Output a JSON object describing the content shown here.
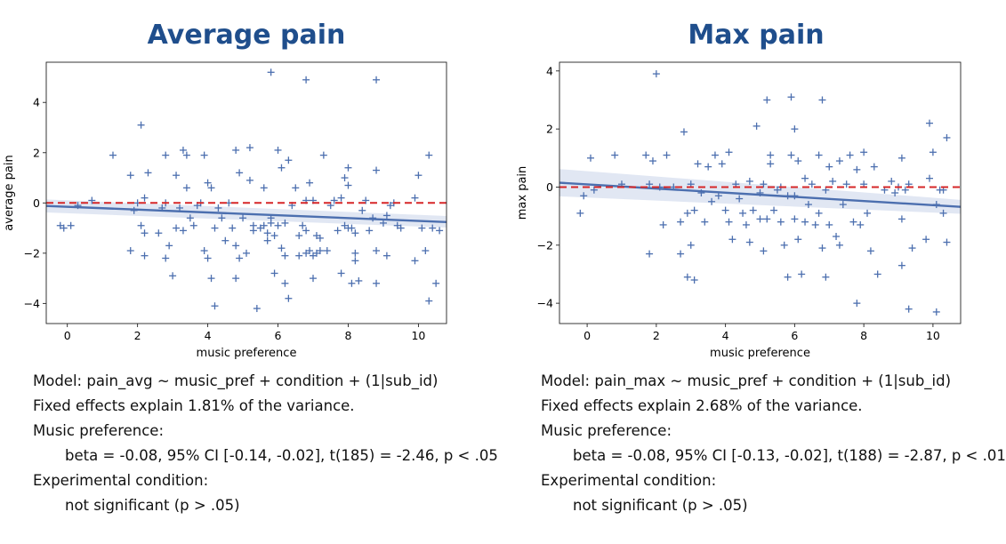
{
  "chart_data": [
    {
      "type": "scatter",
      "title": "Average pain",
      "xlabel": "music preference",
      "ylabel": "average pain",
      "xlim": [
        -0.6,
        10.8
      ],
      "ylim": [
        -4.8,
        5.6
      ],
      "xticks": [
        0,
        2,
        4,
        6,
        8,
        10
      ],
      "yticks": [
        -4,
        -2,
        0,
        2,
        4
      ],
      "grid": false,
      "reference_line": {
        "y": 0,
        "style": "dashed",
        "color": "#d62728"
      },
      "regression": {
        "x": [
          -0.6,
          10.8
        ],
        "y": [
          -0.12,
          -0.76
        ],
        "ci_low": [
          -0.38,
          -0.98
        ],
        "ci_high": [
          0.14,
          -0.52
        ]
      },
      "marker_color": "#4c6faf",
      "points": [
        [
          -0.2,
          -0.9
        ],
        [
          -0.1,
          -1.0
        ],
        [
          0.1,
          -0.9
        ],
        [
          0.3,
          -0.1
        ],
        [
          0.7,
          0.1
        ],
        [
          1.3,
          1.9
        ],
        [
          1.8,
          1.1
        ],
        [
          1.8,
          -1.9
        ],
        [
          1.9,
          -0.3
        ],
        [
          2.0,
          0.0
        ],
        [
          2.1,
          3.1
        ],
        [
          2.1,
          -0.9
        ],
        [
          2.2,
          -1.2
        ],
        [
          2.2,
          -2.1
        ],
        [
          2.2,
          0.2
        ],
        [
          2.3,
          1.2
        ],
        [
          2.6,
          -1.2
        ],
        [
          2.7,
          -0.2
        ],
        [
          2.8,
          1.9
        ],
        [
          2.8,
          -2.2
        ],
        [
          2.8,
          0.0
        ],
        [
          2.9,
          -1.7
        ],
        [
          3.0,
          -2.9
        ],
        [
          3.1,
          -1.0
        ],
        [
          3.1,
          1.1
        ],
        [
          3.2,
          -0.2
        ],
        [
          3.3,
          2.1
        ],
        [
          3.3,
          -1.1
        ],
        [
          3.4,
          1.9
        ],
        [
          3.4,
          0.6
        ],
        [
          3.5,
          -0.6
        ],
        [
          3.6,
          -0.9
        ],
        [
          3.7,
          -0.1
        ],
        [
          3.8,
          0.0
        ],
        [
          3.9,
          1.9
        ],
        [
          3.9,
          -1.9
        ],
        [
          4.0,
          0.8
        ],
        [
          4.0,
          -2.2
        ],
        [
          4.1,
          -3.0
        ],
        [
          4.1,
          0.6
        ],
        [
          4.2,
          -1.0
        ],
        [
          4.2,
          -4.1
        ],
        [
          4.3,
          -0.2
        ],
        [
          4.4,
          -0.6
        ],
        [
          4.5,
          -1.5
        ],
        [
          4.6,
          0.0
        ],
        [
          4.7,
          -1.0
        ],
        [
          4.8,
          -1.7
        ],
        [
          4.8,
          -3.0
        ],
        [
          4.8,
          2.1
        ],
        [
          4.9,
          -2.2
        ],
        [
          4.9,
          1.2
        ],
        [
          5.0,
          -0.6
        ],
        [
          5.1,
          -2.0
        ],
        [
          5.2,
          0.9
        ],
        [
          5.2,
          2.2
        ],
        [
          5.3,
          -0.9
        ],
        [
          5.3,
          -1.1
        ],
        [
          5.4,
          -4.2
        ],
        [
          5.5,
          -1.0
        ],
        [
          5.6,
          -0.9
        ],
        [
          5.6,
          0.6
        ],
        [
          5.7,
          -1.2
        ],
        [
          5.7,
          -1.5
        ],
        [
          5.8,
          5.2
        ],
        [
          5.8,
          -0.8
        ],
        [
          5.8,
          -0.6
        ],
        [
          5.9,
          -1.3
        ],
        [
          5.9,
          -2.8
        ],
        [
          6.0,
          2.1
        ],
        [
          6.0,
          -0.9
        ],
        [
          6.1,
          1.4
        ],
        [
          6.1,
          -1.8
        ],
        [
          6.2,
          -3.2
        ],
        [
          6.2,
          -2.1
        ],
        [
          6.2,
          -0.8
        ],
        [
          6.3,
          1.7
        ],
        [
          6.3,
          -3.8
        ],
        [
          6.4,
          -0.1
        ],
        [
          6.5,
          0.6
        ],
        [
          6.6,
          -2.1
        ],
        [
          6.6,
          -1.3
        ],
        [
          6.7,
          -0.9
        ],
        [
          6.8,
          0.1
        ],
        [
          6.8,
          -1.1
        ],
        [
          6.8,
          -2.0
        ],
        [
          6.8,
          4.9
        ],
        [
          6.9,
          0.8
        ],
        [
          6.9,
          -1.9
        ],
        [
          7.0,
          -2.1
        ],
        [
          7.0,
          -3.0
        ],
        [
          7.0,
          0.1
        ],
        [
          7.1,
          -1.3
        ],
        [
          7.1,
          -2.0
        ],
        [
          7.2,
          -1.4
        ],
        [
          7.2,
          -1.9
        ],
        [
          7.3,
          1.9
        ],
        [
          7.4,
          -1.9
        ],
        [
          7.5,
          -0.1
        ],
        [
          7.6,
          0.1
        ],
        [
          7.7,
          -1.1
        ],
        [
          7.8,
          -2.8
        ],
        [
          7.8,
          0.2
        ],
        [
          7.9,
          1.0
        ],
        [
          7.9,
          -0.9
        ],
        [
          8.0,
          1.4
        ],
        [
          8.0,
          0.7
        ],
        [
          8.0,
          -1.0
        ],
        [
          8.1,
          -3.2
        ],
        [
          8.1,
          -1.0
        ],
        [
          8.2,
          -1.2
        ],
        [
          8.2,
          -2.0
        ],
        [
          8.2,
          -2.3
        ],
        [
          8.3,
          -3.1
        ],
        [
          8.4,
          -0.3
        ],
        [
          8.5,
          0.1
        ],
        [
          8.6,
          -1.1
        ],
        [
          8.7,
          -0.6
        ],
        [
          8.8,
          1.3
        ],
        [
          8.8,
          -1.9
        ],
        [
          8.8,
          -3.2
        ],
        [
          8.8,
          4.9
        ],
        [
          9.0,
          -0.8
        ],
        [
          9.1,
          -0.5
        ],
        [
          9.1,
          -2.1
        ],
        [
          9.2,
          -0.1
        ],
        [
          9.3,
          0.0
        ],
        [
          9.4,
          -0.9
        ],
        [
          9.5,
          -1.0
        ],
        [
          9.9,
          0.2
        ],
        [
          9.9,
          -2.3
        ],
        [
          10.0,
          1.1
        ],
        [
          10.1,
          -1.0
        ],
        [
          10.2,
          -1.9
        ],
        [
          10.3,
          1.9
        ],
        [
          10.3,
          -3.9
        ],
        [
          10.4,
          -1.0
        ],
        [
          10.5,
          -3.2
        ],
        [
          10.6,
          -1.1
        ]
      ]
    },
    {
      "type": "scatter",
      "title": "Max pain",
      "xlabel": "music preference",
      "ylabel": "max pain",
      "xlim": [
        -0.8,
        10.8
      ],
      "ylim": [
        -4.7,
        4.3
      ],
      "xticks": [
        0,
        2,
        4,
        6,
        8,
        10
      ],
      "yticks": [
        -4,
        -2,
        0,
        2,
        4
      ],
      "grid": false,
      "reference_line": {
        "y": 0,
        "style": "dashed",
        "color": "#d62728"
      },
      "regression": {
        "x": [
          -0.8,
          10.8
        ],
        "y": [
          0.15,
          -0.68
        ],
        "ci_low": [
          -0.32,
          -0.92
        ],
        "ci_high": [
          0.62,
          -0.44
        ]
      },
      "marker_color": "#4c6faf",
      "points": [
        [
          -0.2,
          -0.9
        ],
        [
          -0.1,
          -0.3
        ],
        [
          0.1,
          1.0
        ],
        [
          0.2,
          -0.1
        ],
        [
          0.8,
          1.1
        ],
        [
          1.0,
          0.1
        ],
        [
          1.7,
          1.1
        ],
        [
          1.8,
          -2.3
        ],
        [
          1.8,
          0.1
        ],
        [
          1.9,
          0.9
        ],
        [
          2.0,
          3.9
        ],
        [
          2.1,
          0.0
        ],
        [
          2.2,
          -1.3
        ],
        [
          2.3,
          1.1
        ],
        [
          2.5,
          0.0
        ],
        [
          2.7,
          -1.2
        ],
        [
          2.7,
          -2.3
        ],
        [
          2.8,
          1.9
        ],
        [
          2.9,
          -0.9
        ],
        [
          2.9,
          -3.1
        ],
        [
          3.0,
          -2.0
        ],
        [
          3.0,
          0.1
        ],
        [
          3.1,
          -0.8
        ],
        [
          3.1,
          -3.2
        ],
        [
          3.2,
          0.8
        ],
        [
          3.3,
          -0.2
        ],
        [
          3.4,
          -1.2
        ],
        [
          3.5,
          0.7
        ],
        [
          3.6,
          -0.5
        ],
        [
          3.7,
          1.1
        ],
        [
          3.8,
          -0.3
        ],
        [
          3.9,
          0.8
        ],
        [
          4.0,
          -0.8
        ],
        [
          4.1,
          1.2
        ],
        [
          4.1,
          -1.2
        ],
        [
          4.2,
          -1.8
        ],
        [
          4.3,
          0.1
        ],
        [
          4.4,
          -0.4
        ],
        [
          4.5,
          -0.9
        ],
        [
          4.6,
          -1.3
        ],
        [
          4.7,
          0.2
        ],
        [
          4.7,
          -1.9
        ],
        [
          4.8,
          -0.8
        ],
        [
          4.9,
          2.1
        ],
        [
          5.0,
          -1.1
        ],
        [
          5.0,
          -0.2
        ],
        [
          5.1,
          -2.2
        ],
        [
          5.1,
          0.1
        ],
        [
          5.2,
          3.0
        ],
        [
          5.2,
          -1.1
        ],
        [
          5.3,
          0.8
        ],
        [
          5.3,
          1.1
        ],
        [
          5.4,
          -0.8
        ],
        [
          5.5,
          -0.1
        ],
        [
          5.6,
          -1.2
        ],
        [
          5.6,
          0.0
        ],
        [
          5.7,
          -2.0
        ],
        [
          5.8,
          -0.3
        ],
        [
          5.8,
          -3.1
        ],
        [
          5.9,
          3.1
        ],
        [
          5.9,
          1.1
        ],
        [
          6.0,
          2.0
        ],
        [
          6.0,
          -0.3
        ],
        [
          6.0,
          -1.1
        ],
        [
          6.1,
          0.9
        ],
        [
          6.1,
          -1.8
        ],
        [
          6.2,
          -3.0
        ],
        [
          6.3,
          -1.2
        ],
        [
          6.3,
          0.3
        ],
        [
          6.4,
          -0.6
        ],
        [
          6.5,
          0.1
        ],
        [
          6.6,
          -1.3
        ],
        [
          6.7,
          -0.9
        ],
        [
          6.7,
          1.1
        ],
        [
          6.8,
          3.0
        ],
        [
          6.8,
          -2.1
        ],
        [
          6.9,
          -0.1
        ],
        [
          6.9,
          -3.1
        ],
        [
          7.0,
          0.7
        ],
        [
          7.0,
          -1.3
        ],
        [
          7.1,
          0.2
        ],
        [
          7.2,
          -1.7
        ],
        [
          7.3,
          -2.0
        ],
        [
          7.3,
          0.9
        ],
        [
          7.4,
          -0.6
        ],
        [
          7.5,
          0.1
        ],
        [
          7.6,
          1.1
        ],
        [
          7.7,
          -1.2
        ],
        [
          7.8,
          0.6
        ],
        [
          7.8,
          -4.0
        ],
        [
          7.9,
          -1.3
        ],
        [
          8.0,
          1.2
        ],
        [
          8.0,
          0.1
        ],
        [
          8.1,
          -0.9
        ],
        [
          8.2,
          -2.2
        ],
        [
          8.3,
          0.7
        ],
        [
          8.4,
          -3.0
        ],
        [
          8.6,
          -0.1
        ],
        [
          8.8,
          0.2
        ],
        [
          8.9,
          -0.2
        ],
        [
          9.0,
          0.0
        ],
        [
          9.1,
          -1.1
        ],
        [
          9.1,
          -2.7
        ],
        [
          9.1,
          1.0
        ],
        [
          9.2,
          -0.1
        ],
        [
          9.3,
          0.1
        ],
        [
          9.3,
          -4.2
        ],
        [
          9.4,
          -2.1
        ],
        [
          9.8,
          -1.8
        ],
        [
          9.9,
          0.3
        ],
        [
          9.9,
          2.2
        ],
        [
          10.0,
          1.2
        ],
        [
          10.1,
          -4.3
        ],
        [
          10.1,
          -0.6
        ],
        [
          10.2,
          -0.1
        ],
        [
          10.3,
          -0.9
        ],
        [
          10.3,
          -0.1
        ],
        [
          10.4,
          1.7
        ],
        [
          10.4,
          -1.9
        ]
      ]
    }
  ],
  "stats": [
    {
      "model": "Model: pain_avg ~ music_pref + condition + (1|sub_id)",
      "variance": "Fixed effects explain 1.81% of the variance.",
      "music_heading": "Music preference:",
      "music_result": "beta = -0.08, 95% CI [-0.14, -0.02], t(185) = -2.46, p < .05",
      "condition_heading": "Experimental condition:",
      "condition_result": "not significant (p > .05)"
    },
    {
      "model": "Model: pain_max ~ music_pref + condition + (1|sub_id)",
      "variance": "Fixed effects explain 2.68% of the variance.",
      "music_heading": "Music preference:",
      "music_result": "beta = -0.08, 95% CI [-0.13, -0.02], t(188) = -2.87, p < .01",
      "condition_heading": "Experimental condition:",
      "condition_result": "not significant (p > .05)"
    }
  ]
}
